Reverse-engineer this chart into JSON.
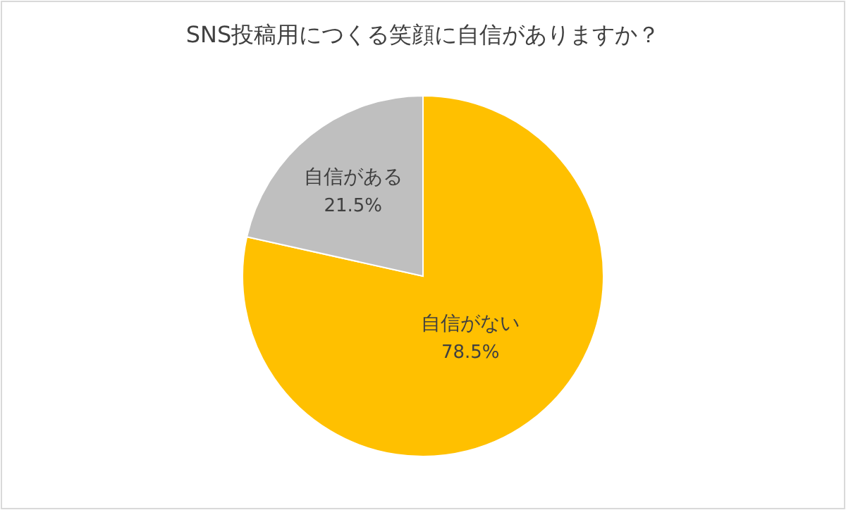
{
  "chart_data": {
    "type": "pie",
    "title": "SNS投稿用につくる笑顔に自信がありますか？",
    "categories": [
      "自信がない",
      "自信がある"
    ],
    "values": [
      78.5,
      21.5
    ],
    "colors": [
      "#ffc000",
      "#bfbfbf"
    ],
    "value_labels": [
      "78.5%",
      "21.5%"
    ]
  }
}
